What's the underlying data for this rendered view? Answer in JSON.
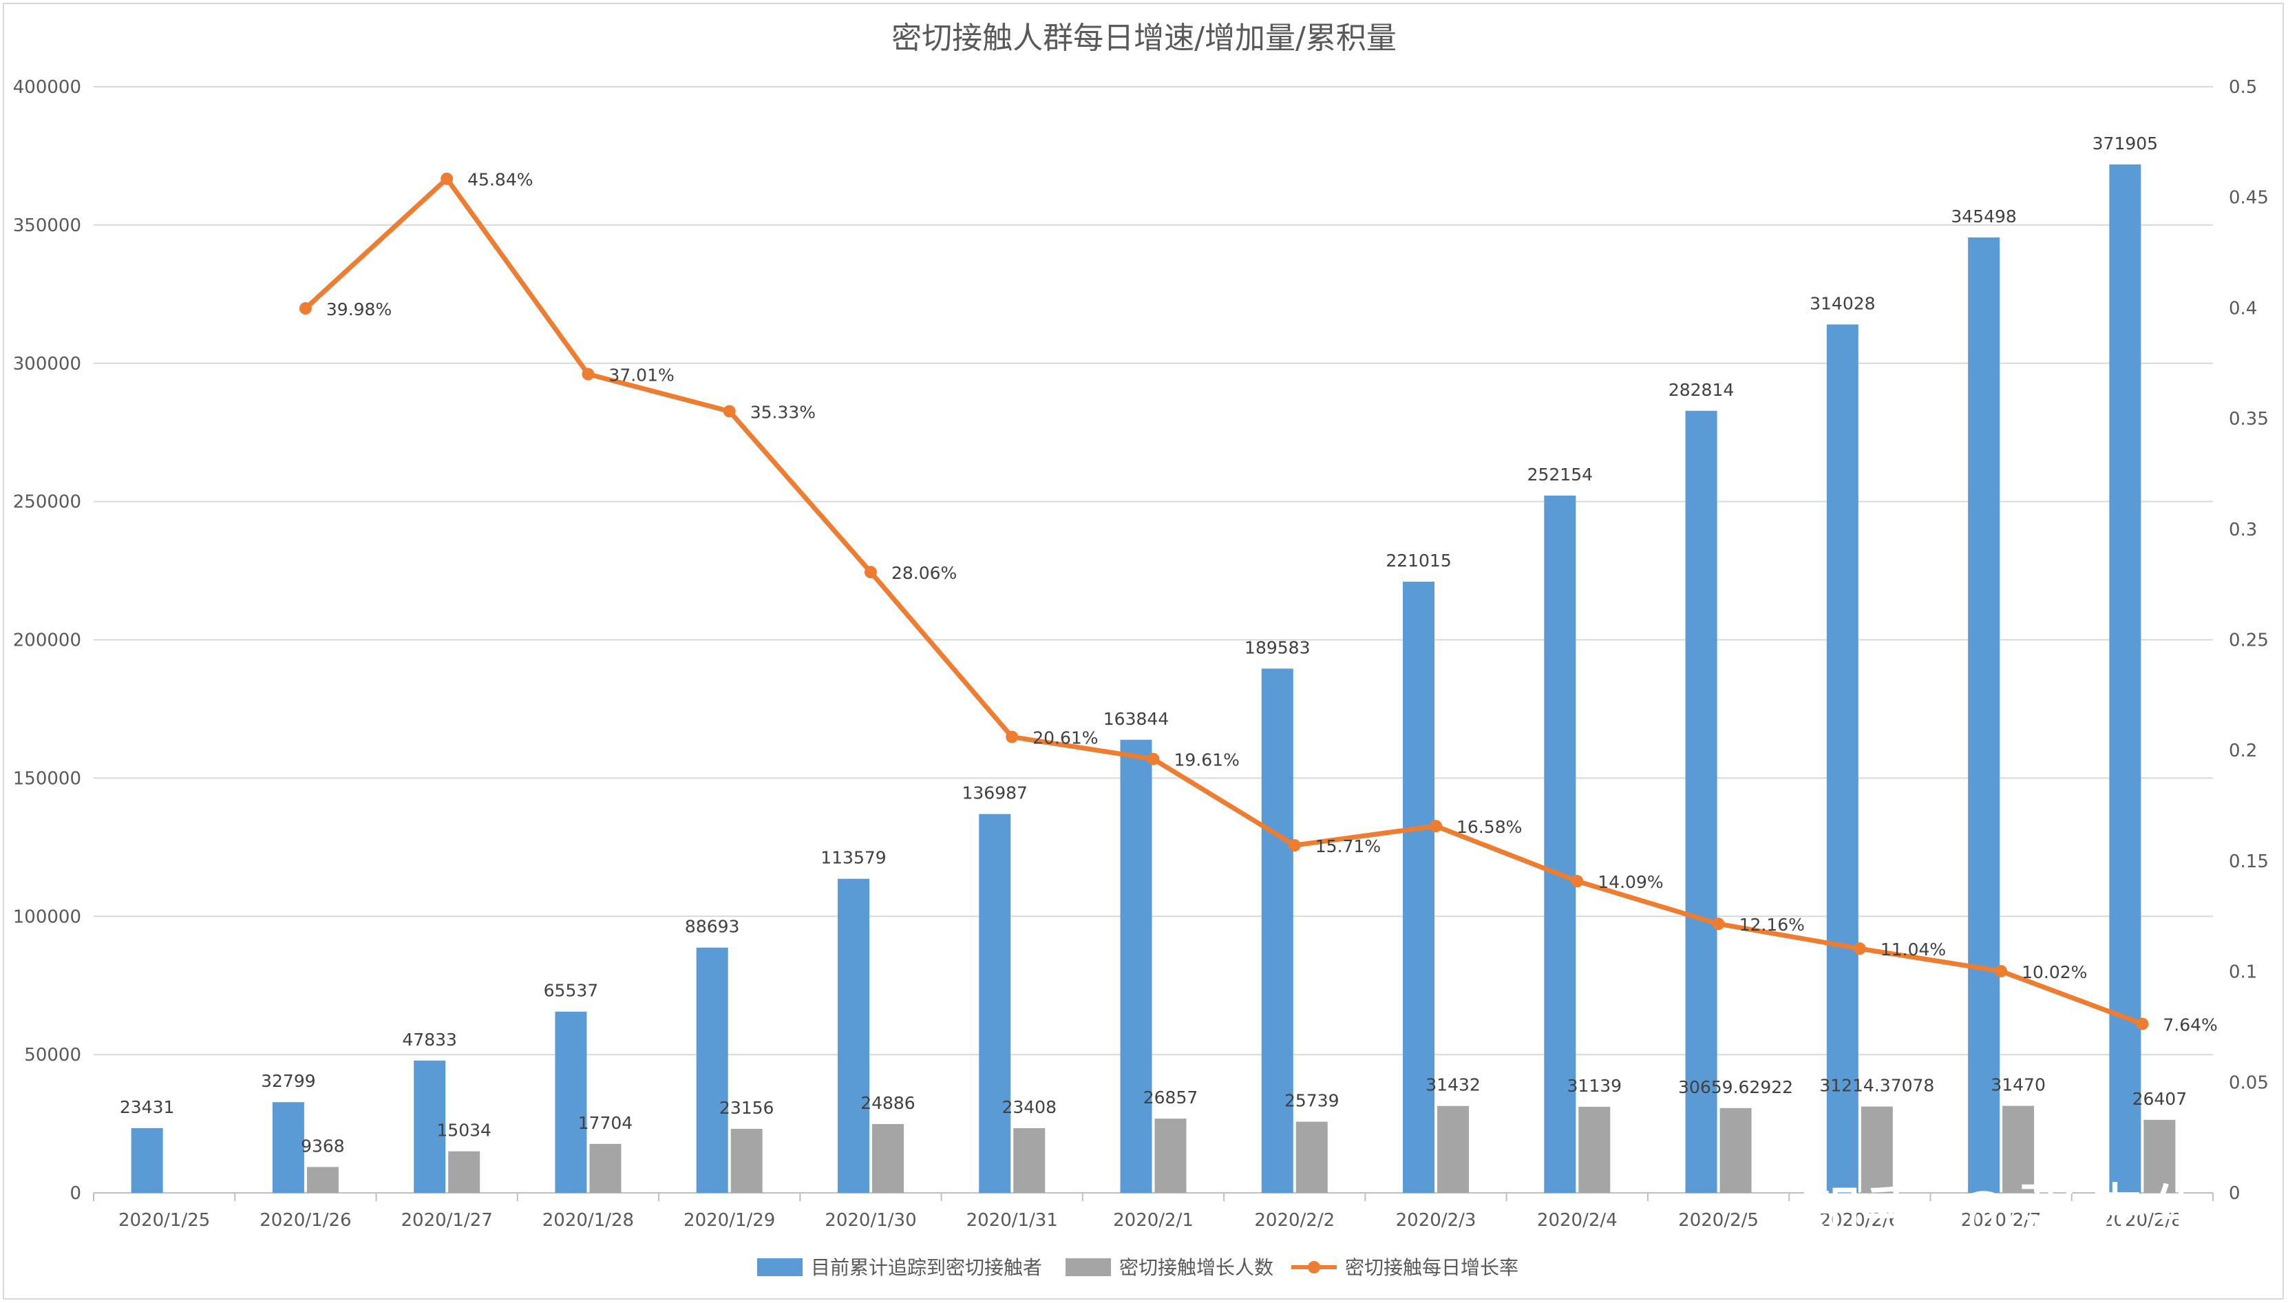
{
  "chart_data": {
    "type": "bar",
    "title": "密切接触人群每日增速/增加量/累积量",
    "categories": [
      "2020/1/25",
      "2020/1/26",
      "2020/1/27",
      "2020/1/28",
      "2020/1/29",
      "2020/1/30",
      "2020/1/31",
      "2020/2/1",
      "2020/2/2",
      "2020/2/3",
      "2020/2/4",
      "2020/2/5",
      "2020/2/6",
      "2020/2/7",
      "2020/2/8"
    ],
    "series": [
      {
        "name": "目前累计追踪到密切接触者",
        "type": "bar",
        "axis": "left",
        "color": "#5b9bd5",
        "values": [
          23431,
          32799,
          47833,
          65537,
          88693,
          113579,
          136987,
          163844,
          189583,
          221015,
          252154,
          282814,
          314028,
          345498,
          371905
        ],
        "labels": [
          "23431",
          "32799",
          "47833",
          "65537",
          "88693",
          "113579",
          "136987",
          "163844",
          "189583",
          "221015",
          "252154",
          "282814",
          "314028",
          "345498",
          "371905"
        ]
      },
      {
        "name": "密切接触增长人数",
        "type": "bar",
        "axis": "left",
        "color": "#a5a5a5",
        "values": [
          null,
          9368,
          15034,
          17704,
          23156,
          24886,
          23408,
          26857,
          25739,
          31432,
          31139,
          30659.62922,
          31214.37078,
          31470,
          26407
        ],
        "labels": [
          "",
          "9368",
          "15034",
          "17704",
          "23156",
          "24886",
          "23408",
          "26857",
          "25739",
          "31432",
          "31139",
          "30659.62922",
          "31214.37078",
          "31470",
          "26407"
        ]
      },
      {
        "name": "密切接触每日增长率",
        "type": "line",
        "axis": "right",
        "color": "#ed7d31",
        "values": [
          null,
          0.3998,
          0.4584,
          0.3701,
          0.3533,
          0.2806,
          0.2061,
          0.1961,
          0.1571,
          0.1658,
          0.1409,
          0.1216,
          0.1104,
          0.1002,
          0.0764
        ],
        "labels": [
          "",
          "39.98%",
          "45.84%",
          "37.01%",
          "35.33%",
          "28.06%",
          "20.61%",
          "19.61%",
          "15.71%",
          "16.58%",
          "14.09%",
          "12.16%",
          "11.04%",
          "10.02%",
          "7.64%"
        ]
      }
    ],
    "y_left": {
      "min": 0,
      "max": 400000,
      "step": 50000,
      "ticks": [
        "0",
        "50000",
        "100000",
        "150000",
        "200000",
        "250000",
        "300000",
        "350000",
        "400000"
      ]
    },
    "y_right": {
      "min": 0,
      "max": 0.5,
      "step": 0.05,
      "ticks": [
        "0",
        "0.05",
        "0.1",
        "0.15",
        "0.2",
        "0.25",
        "0.3",
        "0.35",
        "0.4",
        "0.45",
        "0.5"
      ]
    },
    "grid": true,
    "legend_position": "bottom"
  },
  "watermark": {
    "text": "知乎 @张先生"
  }
}
